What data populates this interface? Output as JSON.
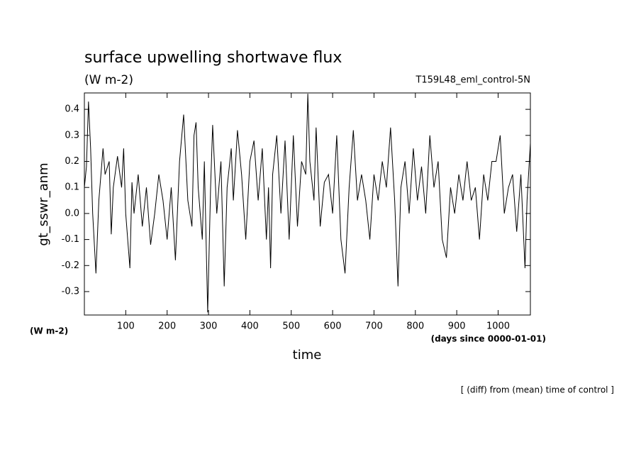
{
  "chart_data": {
    "type": "line",
    "title": "surface upwelling shortwave flux",
    "subtitle": "(W m-2)",
    "subtitle_right": "T159L48_eml_control-5N",
    "ylabel": "gt_sswr_anm",
    "yunits": "(W m-2)",
    "xlabel": "time",
    "xunits": "(days since 0000-01-01)",
    "footnote": "[ (diff) from (mean) time of control ]",
    "color": "#000000",
    "xlim": [
      0,
      1078
    ],
    "ylim": [
      -0.39,
      0.463
    ],
    "xticks": [
      100,
      200,
      300,
      400,
      500,
      600,
      700,
      800,
      900,
      1000
    ],
    "yticks": [
      -0.3,
      -0.2,
      -0.1,
      {
        "value": 0,
        "label": "0.0"
      },
      0.1,
      0.2,
      0.3,
      0.4
    ],
    "x": [
      0,
      5,
      10,
      15,
      20,
      28,
      35,
      45,
      50,
      60,
      65,
      70,
      80,
      90,
      95,
      100,
      110,
      115,
      120,
      130,
      140,
      150,
      160,
      170,
      180,
      190,
      200,
      210,
      220,
      230,
      240,
      250,
      260,
      265,
      270,
      275,
      285,
      290,
      298,
      305,
      310,
      320,
      330,
      338,
      345,
      355,
      360,
      370,
      380,
      390,
      400,
      410,
      420,
      430,
      440,
      445,
      450,
      455,
      465,
      475,
      485,
      495,
      505,
      515,
      525,
      535,
      540,
      545,
      555,
      560,
      570,
      580,
      590,
      600,
      610,
      620,
      630,
      640,
      650,
      660,
      670,
      680,
      690,
      700,
      710,
      720,
      730,
      740,
      750,
      758,
      765,
      775,
      785,
      795,
      805,
      815,
      825,
      835,
      845,
      855,
      865,
      875,
      885,
      895,
      905,
      915,
      925,
      935,
      945,
      955,
      965,
      975,
      985,
      995,
      1005,
      1015,
      1025,
      1035,
      1045,
      1055,
      1065,
      1070,
      1078
    ],
    "values": [
      0.1,
      0.18,
      0.43,
      0.25,
      0.0,
      -0.23,
      0.05,
      0.25,
      0.15,
      0.2,
      -0.08,
      0.1,
      0.22,
      0.1,
      0.25,
      0.0,
      -0.21,
      0.12,
      0.0,
      0.15,
      -0.05,
      0.1,
      -0.12,
      0.0,
      0.15,
      0.05,
      -0.1,
      0.1,
      -0.18,
      0.2,
      0.38,
      0.05,
      -0.05,
      0.3,
      0.35,
      0.1,
      -0.1,
      0.2,
      -0.38,
      0.1,
      0.34,
      0.0,
      0.2,
      -0.28,
      0.1,
      0.25,
      0.05,
      0.32,
      0.15,
      -0.1,
      0.2,
      0.28,
      0.05,
      0.25,
      -0.1,
      0.1,
      -0.21,
      0.15,
      0.3,
      0.0,
      0.28,
      -0.1,
      0.3,
      -0.05,
      0.2,
      0.15,
      0.46,
      0.2,
      0.05,
      0.33,
      -0.05,
      0.12,
      0.15,
      0.0,
      0.3,
      -0.1,
      -0.23,
      0.1,
      0.32,
      0.05,
      0.15,
      0.05,
      -0.1,
      0.15,
      0.05,
      0.2,
      0.1,
      0.33,
      0.05,
      -0.28,
      0.1,
      0.2,
      0.0,
      0.25,
      0.05,
      0.18,
      0.0,
      0.3,
      0.1,
      0.2,
      -0.1,
      -0.17,
      0.1,
      0.0,
      0.15,
      0.05,
      0.2,
      0.05,
      0.1,
      -0.1,
      0.15,
      0.05,
      0.2,
      0.2,
      0.3,
      0.0,
      0.1,
      0.15,
      -0.07,
      0.15,
      -0.21,
      0.05,
      0.27
    ]
  }
}
